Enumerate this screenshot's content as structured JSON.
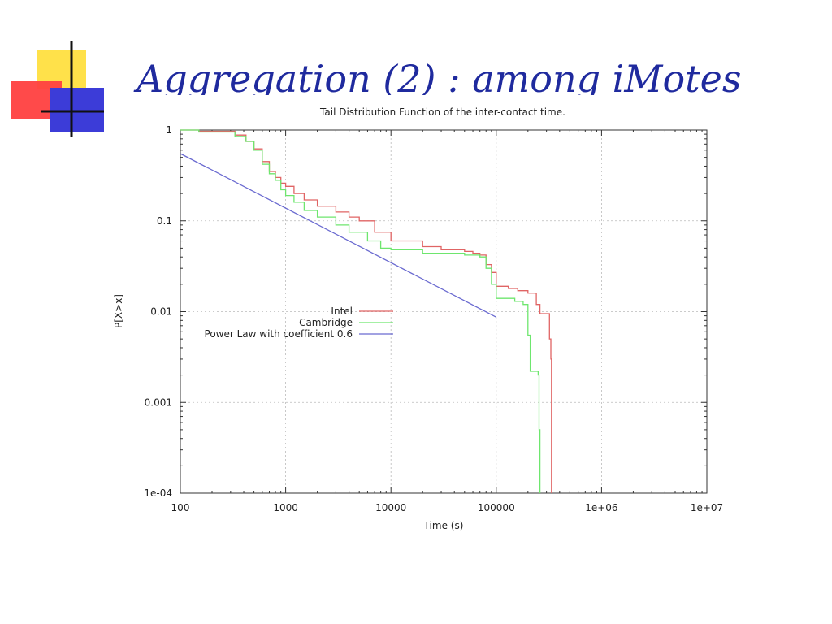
{
  "slide": {
    "title": "Aggregation (2) : among iMotes"
  },
  "colors": {
    "title": "#1f2a9e",
    "intel": "#e06464",
    "cambridge": "#6ee66e",
    "powerlaw": "#6a6ad0",
    "grid": "#bbbbbb",
    "logo_yellow": "#ffe14a",
    "logo_red": "#ff3b3b",
    "logo_blue": "#3b3bd6"
  },
  "chart_data": {
    "type": "line",
    "title": "Tail Distribution Function of the inter-contact time.",
    "xlabel": "Time (s)",
    "ylabel": "P[X>x]",
    "x_scale": "log",
    "y_scale": "log",
    "xlim": [
      100,
      10000000
    ],
    "ylim": [
      0.0001,
      1
    ],
    "grid": true,
    "legend_position": "center",
    "x_ticks": [
      {
        "value": 100,
        "label": "100"
      },
      {
        "value": 1000,
        "label": "1000"
      },
      {
        "value": 10000,
        "label": "10000"
      },
      {
        "value": 100000,
        "label": "100000"
      },
      {
        "value": 1000000,
        "label": "1e+06"
      },
      {
        "value": 10000000,
        "label": "1e+07"
      }
    ],
    "y_ticks": [
      {
        "value": 1,
        "label": "1"
      },
      {
        "value": 0.1,
        "label": "0.1"
      },
      {
        "value": 0.01,
        "label": "0.01"
      },
      {
        "value": 0.001,
        "label": "0.001"
      },
      {
        "value": 0.0001,
        "label": "1e-04"
      }
    ],
    "series": [
      {
        "name": "Intel",
        "color": "#e06464",
        "step": true,
        "points": [
          [
            100,
            1
          ],
          [
            150,
            0.97
          ],
          [
            300,
            0.97
          ],
          [
            330,
            0.88
          ],
          [
            380,
            0.88
          ],
          [
            420,
            0.75
          ],
          [
            500,
            0.62
          ],
          [
            600,
            0.45
          ],
          [
            700,
            0.35
          ],
          [
            800,
            0.3
          ],
          [
            900,
            0.26
          ],
          [
            1000,
            0.24
          ],
          [
            1200,
            0.2
          ],
          [
            1500,
            0.17
          ],
          [
            2000,
            0.145
          ],
          [
            3000,
            0.125
          ],
          [
            4000,
            0.11
          ],
          [
            5000,
            0.1
          ],
          [
            7000,
            0.075
          ],
          [
            10000,
            0.06
          ],
          [
            20000,
            0.052
          ],
          [
            30000,
            0.048
          ],
          [
            50000,
            0.046
          ],
          [
            60000,
            0.044
          ],
          [
            70000,
            0.042
          ],
          [
            80000,
            0.033
          ],
          [
            90000,
            0.027
          ],
          [
            100000,
            0.019
          ],
          [
            130000,
            0.018
          ],
          [
            160000,
            0.017
          ],
          [
            200000,
            0.016
          ],
          [
            230000,
            0.016
          ],
          [
            240000,
            0.012
          ],
          [
            260000,
            0.0095
          ],
          [
            300000,
            0.0095
          ],
          [
            320000,
            0.005
          ],
          [
            330000,
            0.003
          ],
          [
            335000,
            0.0001
          ]
        ]
      },
      {
        "name": "Cambridge",
        "color": "#6ee66e",
        "step": true,
        "points": [
          [
            100,
            1
          ],
          [
            150,
            0.95
          ],
          [
            300,
            0.95
          ],
          [
            330,
            0.85
          ],
          [
            380,
            0.85
          ],
          [
            420,
            0.75
          ],
          [
            500,
            0.6
          ],
          [
            600,
            0.42
          ],
          [
            700,
            0.33
          ],
          [
            800,
            0.28
          ],
          [
            900,
            0.22
          ],
          [
            1000,
            0.19
          ],
          [
            1200,
            0.16
          ],
          [
            1500,
            0.13
          ],
          [
            2000,
            0.11
          ],
          [
            3000,
            0.09
          ],
          [
            4000,
            0.075
          ],
          [
            6000,
            0.06
          ],
          [
            8000,
            0.05
          ],
          [
            10000,
            0.048
          ],
          [
            20000,
            0.044
          ],
          [
            50000,
            0.042
          ],
          [
            70000,
            0.04
          ],
          [
            80000,
            0.03
          ],
          [
            90000,
            0.02
          ],
          [
            100000,
            0.014
          ],
          [
            150000,
            0.013
          ],
          [
            180000,
            0.012
          ],
          [
            200000,
            0.0055
          ],
          [
            210000,
            0.0022
          ],
          [
            250000,
            0.002
          ],
          [
            255000,
            0.0005
          ],
          [
            260000,
            0.0001
          ]
        ]
      },
      {
        "name": "Power Law with coefficient 0.6",
        "color": "#6a6ad0",
        "step": false,
        "points": [
          [
            100,
            0.55
          ],
          [
            100000,
            0.0087
          ]
        ]
      }
    ]
  }
}
